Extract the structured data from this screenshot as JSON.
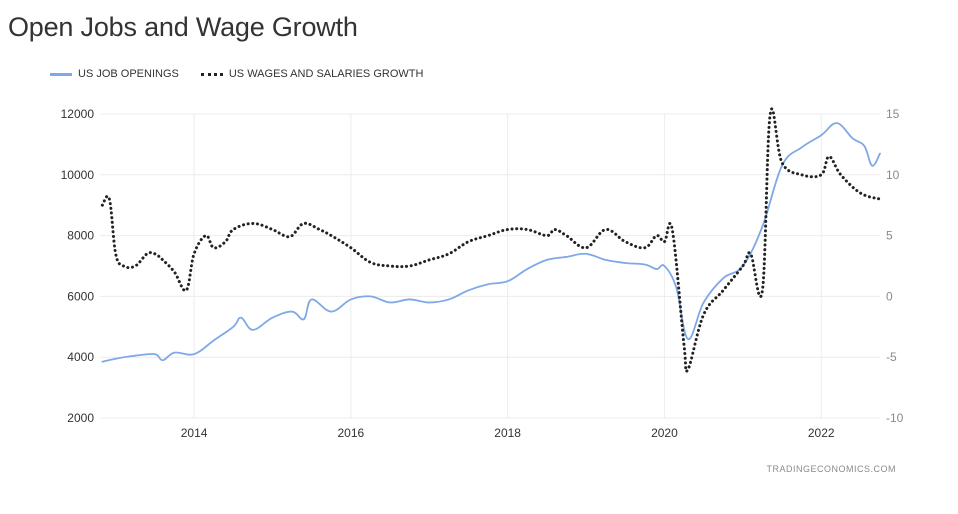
{
  "page": {
    "title": "Open Jobs and Wage Growth",
    "source": "TRADINGECONOMICS.COM"
  },
  "colors": {
    "job_openings": "#7fa8e8",
    "wage_growth": "#222222",
    "grid": "#ececec"
  },
  "chart_data": {
    "type": "line",
    "title": "Open Jobs and Wage Growth",
    "x_axis": {
      "ticks": [
        "2014",
        "2016",
        "2018",
        "2020",
        "2022"
      ],
      "range": [
        2012.8,
        2022.75
      ]
    },
    "y_left": {
      "ticks": [
        "12000",
        "10000",
        "8000",
        "6000",
        "4000",
        "2000"
      ],
      "range": [
        2000,
        12000
      ]
    },
    "y_right": {
      "ticks": [
        "15",
        "10",
        "5",
        "0",
        "-5",
        "-10"
      ],
      "range": [
        -10,
        15
      ]
    },
    "grid": true,
    "legend_position": "top-left",
    "series": [
      {
        "name": "US JOB OPENINGS",
        "axis": "left",
        "style": "solid",
        "x": [
          2012.83,
          2013.0,
          2013.25,
          2013.5,
          2013.6,
          2013.75,
          2014.0,
          2014.25,
          2014.5,
          2014.6,
          2014.75,
          2015.0,
          2015.25,
          2015.4,
          2015.5,
          2015.75,
          2016.0,
          2016.25,
          2016.5,
          2016.75,
          2017.0,
          2017.25,
          2017.5,
          2017.75,
          2018.0,
          2018.25,
          2018.5,
          2018.75,
          2019.0,
          2019.25,
          2019.5,
          2019.75,
          2019.9,
          2020.0,
          2020.15,
          2020.3,
          2020.5,
          2020.75,
          2021.0,
          2021.25,
          2021.5,
          2021.75,
          2022.0,
          2022.2,
          2022.4,
          2022.55,
          2022.65,
          2022.75
        ],
        "values": [
          3850,
          3950,
          4050,
          4100,
          3900,
          4150,
          4100,
          4550,
          5000,
          5300,
          4900,
          5300,
          5500,
          5250,
          5900,
          5500,
          5900,
          6000,
          5800,
          5900,
          5800,
          5900,
          6200,
          6400,
          6500,
          6900,
          7200,
          7300,
          7400,
          7200,
          7100,
          7050,
          6900,
          7000,
          6300,
          4600,
          5800,
          6600,
          7000,
          8300,
          10300,
          10900,
          11300,
          11700,
          11200,
          10950,
          10300,
          10700
        ]
      },
      {
        "name": "US WAGES AND SALARIES GROWTH",
        "axis": "right",
        "style": "dotted",
        "x": [
          2012.83,
          2012.92,
          2013.0,
          2013.1,
          2013.25,
          2013.4,
          2013.5,
          2013.6,
          2013.75,
          2013.9,
          2014.0,
          2014.15,
          2014.25,
          2014.4,
          2014.5,
          2014.75,
          2015.0,
          2015.15,
          2015.25,
          2015.4,
          2015.6,
          2015.75,
          2016.0,
          2016.25,
          2016.5,
          2016.75,
          2017.0,
          2017.25,
          2017.5,
          2017.75,
          2018.0,
          2018.25,
          2018.5,
          2018.6,
          2018.75,
          2019.0,
          2019.25,
          2019.5,
          2019.75,
          2019.9,
          2020.0,
          2020.1,
          2020.25,
          2020.3,
          2020.5,
          2020.75,
          2021.0,
          2021.1,
          2021.25,
          2021.35,
          2021.5,
          2021.75,
          2022.0,
          2022.1,
          2022.25,
          2022.5,
          2022.75
        ],
        "values": [
          7.5,
          8,
          3.5,
          2.5,
          2.5,
          3.5,
          3.5,
          3,
          2,
          0.5,
          3.5,
          5,
          4,
          4.5,
          5.5,
          6,
          5.5,
          5,
          5,
          6,
          5.5,
          5,
          4,
          2.8,
          2.5,
          2.5,
          3,
          3.5,
          4.5,
          5,
          5.5,
          5.5,
          5,
          5.5,
          5,
          4,
          5.5,
          4.5,
          4,
          5,
          4.5,
          5.5,
          -4,
          -6,
          -1.5,
          0.5,
          2.5,
          3.5,
          0.5,
          15,
          11,
          10,
          10,
          11.5,
          10,
          8.5,
          8
        ]
      }
    ]
  }
}
